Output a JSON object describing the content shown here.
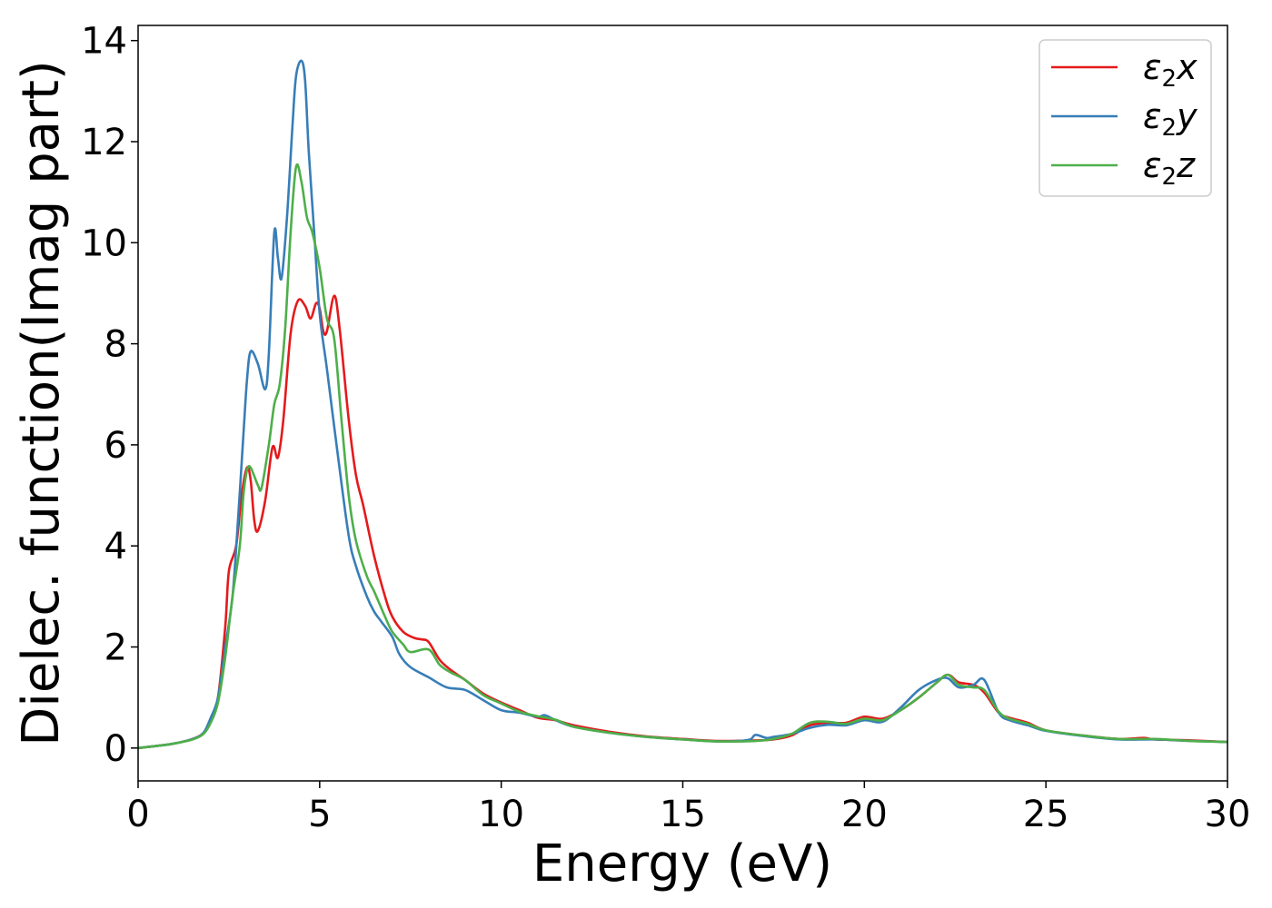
{
  "chart_data": {
    "type": "line",
    "xlabel": "Energy (eV)",
    "ylabel": "Dielec. function(Imag part)",
    "xlim": [
      0,
      30
    ],
    "ylim": [
      -0.65,
      14.3
    ],
    "xticks": [
      0,
      5,
      10,
      15,
      20,
      25,
      30
    ],
    "yticks": [
      0,
      2,
      4,
      6,
      8,
      10,
      12,
      14
    ],
    "grid": false,
    "legend_position": "top-right",
    "series": [
      {
        "name": "ε2x",
        "symbol": "ε",
        "subscript": "2",
        "axis": "x",
        "color": "#e41a1c",
        "points": [
          [
            0,
            0
          ],
          [
            0.5,
            0.04
          ],
          [
            1.0,
            0.09
          ],
          [
            1.5,
            0.18
          ],
          [
            1.8,
            0.3
          ],
          [
            2.0,
            0.55
          ],
          [
            2.2,
            1.0
          ],
          [
            2.4,
            2.4
          ],
          [
            2.5,
            3.5
          ],
          [
            2.7,
            4.0
          ],
          [
            2.85,
            5.0
          ],
          [
            3.0,
            5.55
          ],
          [
            3.1,
            5.3
          ],
          [
            3.2,
            4.5
          ],
          [
            3.3,
            4.3
          ],
          [
            3.5,
            4.9
          ],
          [
            3.7,
            5.95
          ],
          [
            3.85,
            5.75
          ],
          [
            4.0,
            6.5
          ],
          [
            4.2,
            8.2
          ],
          [
            4.4,
            8.85
          ],
          [
            4.6,
            8.75
          ],
          [
            4.75,
            8.5
          ],
          [
            4.9,
            8.8
          ],
          [
            5.0,
            8.7
          ],
          [
            5.1,
            8.25
          ],
          [
            5.2,
            8.25
          ],
          [
            5.4,
            8.95
          ],
          [
            5.55,
            8.3
          ],
          [
            5.8,
            6.5
          ],
          [
            6.0,
            5.4
          ],
          [
            6.2,
            4.8
          ],
          [
            6.5,
            3.8
          ],
          [
            6.8,
            3.0
          ],
          [
            7.0,
            2.6
          ],
          [
            7.3,
            2.3
          ],
          [
            7.6,
            2.18
          ],
          [
            7.8,
            2.15
          ],
          [
            8.0,
            2.1
          ],
          [
            8.3,
            1.75
          ],
          [
            8.6,
            1.55
          ],
          [
            9.0,
            1.35
          ],
          [
            9.5,
            1.08
          ],
          [
            10.0,
            0.9
          ],
          [
            10.5,
            0.75
          ],
          [
            11.0,
            0.6
          ],
          [
            11.5,
            0.55
          ],
          [
            12.0,
            0.45
          ],
          [
            13.0,
            0.32
          ],
          [
            14.0,
            0.23
          ],
          [
            15.0,
            0.18
          ],
          [
            16.0,
            0.14
          ],
          [
            17.0,
            0.15
          ],
          [
            17.5,
            0.17
          ],
          [
            18.0,
            0.25
          ],
          [
            18.5,
            0.45
          ],
          [
            19.0,
            0.5
          ],
          [
            19.5,
            0.5
          ],
          [
            20.0,
            0.62
          ],
          [
            20.5,
            0.58
          ],
          [
            21.0,
            0.75
          ],
          [
            21.5,
            1.0
          ],
          [
            22.0,
            1.3
          ],
          [
            22.3,
            1.45
          ],
          [
            22.6,
            1.3
          ],
          [
            23.0,
            1.25
          ],
          [
            23.3,
            1.1
          ],
          [
            23.7,
            0.7
          ],
          [
            24.0,
            0.6
          ],
          [
            24.5,
            0.5
          ],
          [
            25.0,
            0.35
          ],
          [
            26.0,
            0.25
          ],
          [
            27.0,
            0.18
          ],
          [
            27.7,
            0.2
          ],
          [
            28.0,
            0.17
          ],
          [
            29.0,
            0.15
          ],
          [
            30.0,
            0.12
          ]
        ]
      },
      {
        "name": "ε2y",
        "symbol": "ε",
        "subscript": "2",
        "axis": "y",
        "color": "#377eb8",
        "points": [
          [
            0,
            0
          ],
          [
            0.5,
            0.04
          ],
          [
            1.0,
            0.09
          ],
          [
            1.5,
            0.18
          ],
          [
            1.8,
            0.3
          ],
          [
            2.0,
            0.6
          ],
          [
            2.2,
            1.0
          ],
          [
            2.4,
            2.0
          ],
          [
            2.6,
            3.0
          ],
          [
            2.75,
            4.5
          ],
          [
            2.9,
            6.2
          ],
          [
            3.0,
            7.3
          ],
          [
            3.1,
            7.85
          ],
          [
            3.3,
            7.6
          ],
          [
            3.5,
            7.1
          ],
          [
            3.6,
            7.8
          ],
          [
            3.75,
            10.2
          ],
          [
            3.85,
            9.7
          ],
          [
            3.95,
            9.3
          ],
          [
            4.1,
            10.5
          ],
          [
            4.25,
            12.3
          ],
          [
            4.35,
            13.3
          ],
          [
            4.5,
            13.6
          ],
          [
            4.6,
            13.2
          ],
          [
            4.7,
            11.8
          ],
          [
            4.85,
            10.2
          ],
          [
            5.0,
            8.6
          ],
          [
            5.2,
            7.5
          ],
          [
            5.5,
            5.8
          ],
          [
            5.8,
            4.2
          ],
          [
            6.0,
            3.6
          ],
          [
            6.3,
            3.0
          ],
          [
            6.5,
            2.7
          ],
          [
            6.7,
            2.5
          ],
          [
            7.0,
            2.2
          ],
          [
            7.2,
            1.85
          ],
          [
            7.5,
            1.6
          ],
          [
            8.0,
            1.4
          ],
          [
            8.5,
            1.2
          ],
          [
            9.0,
            1.15
          ],
          [
            9.5,
            0.95
          ],
          [
            10.0,
            0.75
          ],
          [
            10.5,
            0.7
          ],
          [
            11.0,
            0.62
          ],
          [
            11.2,
            0.65
          ],
          [
            11.5,
            0.55
          ],
          [
            12.0,
            0.42
          ],
          [
            13.0,
            0.3
          ],
          [
            14.0,
            0.22
          ],
          [
            15.0,
            0.17
          ],
          [
            16.0,
            0.13
          ],
          [
            16.8,
            0.16
          ],
          [
            17.0,
            0.26
          ],
          [
            17.3,
            0.2
          ],
          [
            17.5,
            0.22
          ],
          [
            18.0,
            0.28
          ],
          [
            18.5,
            0.4
          ],
          [
            19.0,
            0.46
          ],
          [
            19.5,
            0.45
          ],
          [
            20.0,
            0.55
          ],
          [
            20.5,
            0.52
          ],
          [
            21.0,
            0.8
          ],
          [
            21.5,
            1.15
          ],
          [
            22.0,
            1.35
          ],
          [
            22.3,
            1.38
          ],
          [
            22.6,
            1.2
          ],
          [
            23.0,
            1.25
          ],
          [
            23.3,
            1.35
          ],
          [
            23.7,
            0.7
          ],
          [
            24.0,
            0.55
          ],
          [
            24.5,
            0.45
          ],
          [
            25.0,
            0.34
          ],
          [
            26.0,
            0.24
          ],
          [
            27.0,
            0.17
          ],
          [
            28.0,
            0.17
          ],
          [
            29.0,
            0.14
          ],
          [
            30.0,
            0.12
          ]
        ]
      },
      {
        "name": "ε2z",
        "symbol": "ε",
        "subscript": "2",
        "axis": "z",
        "color": "#4daf4a",
        "points": [
          [
            0,
            0
          ],
          [
            0.5,
            0.04
          ],
          [
            1.0,
            0.09
          ],
          [
            1.5,
            0.17
          ],
          [
            1.8,
            0.28
          ],
          [
            2.0,
            0.5
          ],
          [
            2.2,
            0.9
          ],
          [
            2.4,
            1.8
          ],
          [
            2.6,
            3.0
          ],
          [
            2.8,
            4.0
          ],
          [
            2.9,
            5.0
          ],
          [
            3.0,
            5.5
          ],
          [
            3.1,
            5.55
          ],
          [
            3.3,
            5.2
          ],
          [
            3.4,
            5.15
          ],
          [
            3.6,
            6.0
          ],
          [
            3.75,
            6.8
          ],
          [
            3.9,
            7.2
          ],
          [
            4.05,
            8.3
          ],
          [
            4.2,
            10.2
          ],
          [
            4.35,
            11.5
          ],
          [
            4.5,
            11.2
          ],
          [
            4.65,
            10.5
          ],
          [
            4.8,
            10.2
          ],
          [
            5.0,
            9.5
          ],
          [
            5.2,
            8.5
          ],
          [
            5.4,
            8.1
          ],
          [
            5.6,
            6.5
          ],
          [
            5.8,
            5.0
          ],
          [
            6.0,
            4.1
          ],
          [
            6.3,
            3.4
          ],
          [
            6.5,
            3.1
          ],
          [
            6.8,
            2.6
          ],
          [
            7.0,
            2.3
          ],
          [
            7.3,
            2.05
          ],
          [
            7.5,
            1.9
          ],
          [
            8.0,
            1.95
          ],
          [
            8.3,
            1.65
          ],
          [
            8.6,
            1.5
          ],
          [
            9.0,
            1.35
          ],
          [
            9.5,
            1.05
          ],
          [
            10.0,
            0.88
          ],
          [
            10.5,
            0.72
          ],
          [
            11.0,
            0.63
          ],
          [
            11.5,
            0.56
          ],
          [
            12.0,
            0.42
          ],
          [
            13.0,
            0.3
          ],
          [
            14.0,
            0.22
          ],
          [
            15.0,
            0.17
          ],
          [
            16.0,
            0.13
          ],
          [
            17.0,
            0.14
          ],
          [
            17.5,
            0.18
          ],
          [
            18.0,
            0.28
          ],
          [
            18.5,
            0.5
          ],
          [
            19.0,
            0.52
          ],
          [
            19.5,
            0.48
          ],
          [
            20.0,
            0.58
          ],
          [
            20.5,
            0.55
          ],
          [
            21.0,
            0.75
          ],
          [
            21.5,
            1.0
          ],
          [
            22.0,
            1.3
          ],
          [
            22.3,
            1.45
          ],
          [
            22.6,
            1.25
          ],
          [
            23.0,
            1.2
          ],
          [
            23.3,
            1.15
          ],
          [
            23.7,
            0.72
          ],
          [
            24.0,
            0.58
          ],
          [
            24.5,
            0.48
          ],
          [
            25.0,
            0.35
          ],
          [
            26.0,
            0.25
          ],
          [
            27.0,
            0.18
          ],
          [
            28.0,
            0.18
          ],
          [
            29.0,
            0.14
          ],
          [
            30.0,
            0.12
          ]
        ]
      }
    ]
  }
}
